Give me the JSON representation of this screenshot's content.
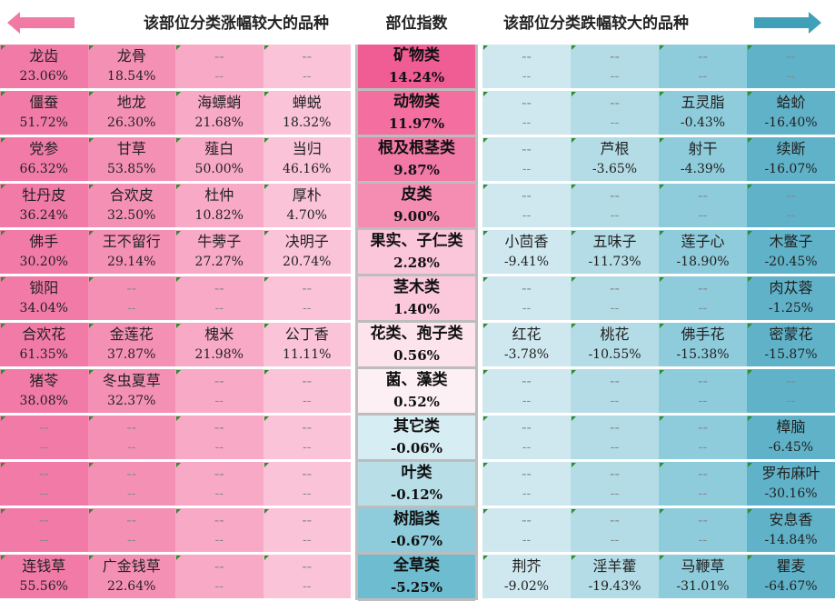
{
  "header": {
    "left_title": "该部位分类涨幅较大的品种",
    "mid_title": "部位指数",
    "right_title": "该部位分类跌幅较大的品种"
  },
  "colors": {
    "rise_1": "#f27aa6",
    "rise_2": "#f590b5",
    "rise_3": "#f8a9c6",
    "rise_4": "#fbc3d8",
    "fall_1": "#cfe8ef",
    "fall_2": "#b3dce6",
    "fall_3": "#8ecbdb",
    "fall_4": "#5fb2c8",
    "arrow_left": "#f07aa4",
    "arrow_right": "#3fa0b8"
  },
  "categories": [
    {
      "name": "矿物类",
      "index": "14.24%",
      "rise": [
        {
          "n": "龙齿",
          "v": "23.06%"
        },
        {
          "n": "龙骨",
          "v": "18.54%"
        },
        {
          "n": "--",
          "v": "--"
        },
        {
          "n": "--",
          "v": "--"
        }
      ],
      "fall": [
        {
          "n": "--",
          "v": "--"
        },
        {
          "n": "--",
          "v": "--"
        },
        {
          "n": "--",
          "v": "--"
        },
        {
          "n": "--",
          "v": "--"
        }
      ]
    },
    {
      "name": "动物类",
      "index": "11.97%",
      "rise": [
        {
          "n": "僵蚕",
          "v": "51.72%"
        },
        {
          "n": "地龙",
          "v": "26.30%"
        },
        {
          "n": "海螵蛸",
          "v": "21.68%"
        },
        {
          "n": "蝉蜕",
          "v": "18.32%"
        }
      ],
      "fall": [
        {
          "n": "--",
          "v": "--"
        },
        {
          "n": "--",
          "v": "--"
        },
        {
          "n": "五灵脂",
          "v": "-0.43%"
        },
        {
          "n": "蛤蚧",
          "v": "-16.40%"
        }
      ]
    },
    {
      "name": "根及根茎类",
      "index": "9.87%",
      "rise": [
        {
          "n": "党参",
          "v": "66.32%"
        },
        {
          "n": "甘草",
          "v": "53.85%"
        },
        {
          "n": "薤白",
          "v": "50.00%"
        },
        {
          "n": "当归",
          "v": "46.16%"
        }
      ],
      "fall": [
        {
          "n": "--",
          "v": "--"
        },
        {
          "n": "芦根",
          "v": "-3.65%"
        },
        {
          "n": "射干",
          "v": "-4.39%"
        },
        {
          "n": "续断",
          "v": "-16.07%"
        }
      ]
    },
    {
      "name": "皮类",
      "index": "9.00%",
      "rise": [
        {
          "n": "牡丹皮",
          "v": "36.24%"
        },
        {
          "n": "合欢皮",
          "v": "32.50%"
        },
        {
          "n": "杜仲",
          "v": "10.82%"
        },
        {
          "n": "厚朴",
          "v": "4.70%"
        }
      ],
      "fall": [
        {
          "n": "--",
          "v": "--"
        },
        {
          "n": "--",
          "v": "--"
        },
        {
          "n": "--",
          "v": "--"
        },
        {
          "n": "--",
          "v": "--"
        }
      ]
    },
    {
      "name": "果实、子仁类",
      "index": "2.28%",
      "rise": [
        {
          "n": "佛手",
          "v": "30.20%"
        },
        {
          "n": "王不留行",
          "v": "29.14%"
        },
        {
          "n": "牛蒡子",
          "v": "27.27%"
        },
        {
          "n": "决明子",
          "v": "20.74%"
        }
      ],
      "fall": [
        {
          "n": "小茴香",
          "v": "-9.41%"
        },
        {
          "n": "五味子",
          "v": "-11.73%"
        },
        {
          "n": "莲子心",
          "v": "-18.90%"
        },
        {
          "n": "木鳖子",
          "v": "-20.45%"
        }
      ]
    },
    {
      "name": "茎木类",
      "index": "1.40%",
      "rise": [
        {
          "n": "锁阳",
          "v": "34.04%"
        },
        {
          "n": "--",
          "v": "--"
        },
        {
          "n": "--",
          "v": "--"
        },
        {
          "n": "--",
          "v": "--"
        }
      ],
      "fall": [
        {
          "n": "--",
          "v": "--"
        },
        {
          "n": "--",
          "v": "--"
        },
        {
          "n": "--",
          "v": "--"
        },
        {
          "n": "肉苁蓉",
          "v": "-1.25%"
        }
      ]
    },
    {
      "name": "花类、孢子类",
      "index": "0.56%",
      "rise": [
        {
          "n": "合欢花",
          "v": "61.35%"
        },
        {
          "n": "金莲花",
          "v": "37.87%"
        },
        {
          "n": "槐米",
          "v": "21.98%"
        },
        {
          "n": "公丁香",
          "v": "11.11%"
        }
      ],
      "fall": [
        {
          "n": "红花",
          "v": "-3.78%"
        },
        {
          "n": "桃花",
          "v": "-10.55%"
        },
        {
          "n": "佛手花",
          "v": "-15.38%"
        },
        {
          "n": "密蒙花",
          "v": "-15.87%"
        }
      ]
    },
    {
      "name": "菌、藻类",
      "index": "0.52%",
      "rise": [
        {
          "n": "猪苓",
          "v": "38.08%"
        },
        {
          "n": "冬虫夏草",
          "v": "32.37%"
        },
        {
          "n": "--",
          "v": "--"
        },
        {
          "n": "--",
          "v": "--"
        }
      ],
      "fall": [
        {
          "n": "--",
          "v": "--"
        },
        {
          "n": "--",
          "v": "--"
        },
        {
          "n": "--",
          "v": "--"
        },
        {
          "n": "--",
          "v": "--"
        }
      ]
    },
    {
      "name": "其它类",
      "index": "-0.06%",
      "rise": [
        {
          "n": "--",
          "v": "--"
        },
        {
          "n": "--",
          "v": "--"
        },
        {
          "n": "--",
          "v": "--"
        },
        {
          "n": "--",
          "v": "--"
        }
      ],
      "fall": [
        {
          "n": "--",
          "v": "--"
        },
        {
          "n": "--",
          "v": "--"
        },
        {
          "n": "--",
          "v": "--"
        },
        {
          "n": "樟脑",
          "v": "-6.45%"
        }
      ]
    },
    {
      "name": "叶类",
      "index": "-0.12%",
      "rise": [
        {
          "n": "--",
          "v": "--"
        },
        {
          "n": "--",
          "v": "--"
        },
        {
          "n": "--",
          "v": "--"
        },
        {
          "n": "--",
          "v": "--"
        }
      ],
      "fall": [
        {
          "n": "--",
          "v": "--"
        },
        {
          "n": "--",
          "v": "--"
        },
        {
          "n": "--",
          "v": "--"
        },
        {
          "n": "罗布麻叶",
          "v": "-30.16%"
        }
      ]
    },
    {
      "name": "树脂类",
      "index": "-0.67%",
      "rise": [
        {
          "n": "--",
          "v": "--"
        },
        {
          "n": "--",
          "v": "--"
        },
        {
          "n": "--",
          "v": "--"
        },
        {
          "n": "--",
          "v": "--"
        }
      ],
      "fall": [
        {
          "n": "--",
          "v": "--"
        },
        {
          "n": "--",
          "v": "--"
        },
        {
          "n": "--",
          "v": "--"
        },
        {
          "n": "安息香",
          "v": "-14.84%"
        }
      ]
    },
    {
      "name": "全草类",
      "index": "-5.25%",
      "rise": [
        {
          "n": "连钱草",
          "v": "55.56%"
        },
        {
          "n": "广金钱草",
          "v": "22.64%"
        },
        {
          "n": "--",
          "v": "--"
        },
        {
          "n": "--",
          "v": "--"
        }
      ],
      "fall": [
        {
          "n": "荆芥",
          "v": "-9.02%"
        },
        {
          "n": "淫羊藿",
          "v": "-19.43%"
        },
        {
          "n": "马鞭草",
          "v": "-31.01%"
        },
        {
          "n": "瞿麦",
          "v": "-64.67%"
        }
      ]
    }
  ]
}
